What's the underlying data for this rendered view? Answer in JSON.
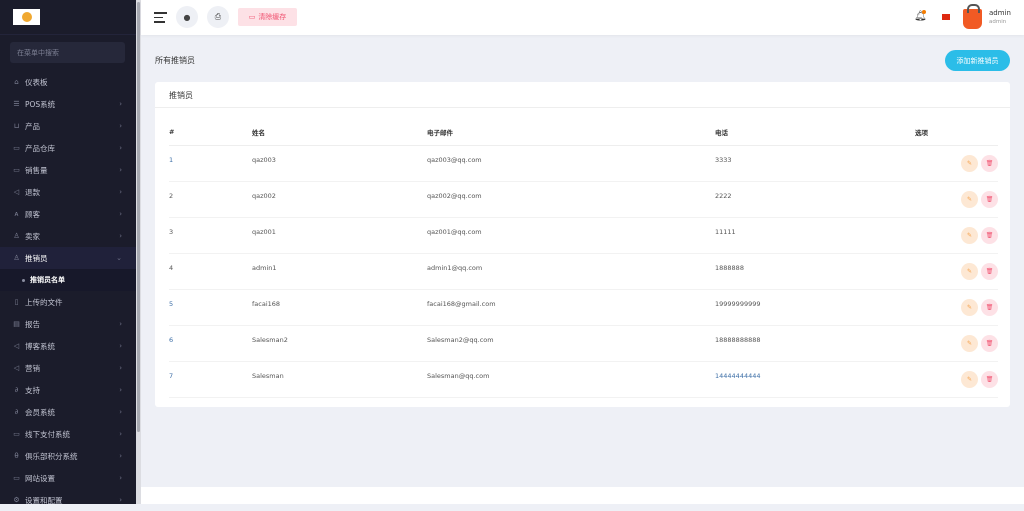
{
  "sidebar": {
    "search_placeholder": "在菜单中搜索",
    "items": [
      {
        "label": "仪表板",
        "icon": "home-icon",
        "chevron": false
      },
      {
        "label": "POS系统",
        "icon": "list-icon",
        "chevron": true
      },
      {
        "label": "产品",
        "icon": "cart-icon",
        "chevron": true
      },
      {
        "label": "产品仓库",
        "icon": "warehouse-icon",
        "chevron": true
      },
      {
        "label": "销售量",
        "icon": "sales-icon",
        "chevron": true
      },
      {
        "label": "退款",
        "icon": "refund-icon",
        "chevron": true
      },
      {
        "label": "顾客",
        "icon": "customers-icon",
        "chevron": true
      },
      {
        "label": "卖家",
        "icon": "user-icon",
        "chevron": true
      },
      {
        "label": "推销员",
        "icon": "user-icon",
        "chevron": true,
        "active": true
      },
      {
        "label": "上传的文件",
        "icon": "file-icon",
        "chevron": false
      },
      {
        "label": "报告",
        "icon": "report-icon",
        "chevron": true
      },
      {
        "label": "博客系统",
        "icon": "megaphone-icon",
        "chevron": true
      },
      {
        "label": "营销",
        "icon": "megaphone-icon",
        "chevron": true
      },
      {
        "label": "支持",
        "icon": "link-icon",
        "chevron": true
      },
      {
        "label": "会员系统",
        "icon": "link-icon",
        "chevron": true
      },
      {
        "label": "线下支付系统",
        "icon": "card-icon",
        "chevron": true
      },
      {
        "label": "俱乐部积分系统",
        "icon": "coin-icon",
        "chevron": true
      },
      {
        "label": "网站设置",
        "icon": "monitor-icon",
        "chevron": true
      },
      {
        "label": "设置和配置",
        "icon": "gear-icon",
        "chevron": true
      }
    ],
    "subitem": "推销员名单"
  },
  "topbar": {
    "clear_cache": "清除缓存",
    "user_name": "admin",
    "user_role": "admin"
  },
  "page": {
    "title": "所有推销员",
    "add_button": "添加新推销员"
  },
  "card": {
    "title": "推销员",
    "columns": [
      "#",
      "姓名",
      "电子邮件",
      "电话",
      "选项"
    ],
    "rows": [
      {
        "no": "1",
        "name": "qaz003",
        "email": "qaz003@qq.com",
        "phone": "3333"
      },
      {
        "no": "2",
        "name": "qaz002",
        "email": "qaz002@qq.com",
        "phone": "2222"
      },
      {
        "no": "3",
        "name": "qaz001",
        "email": "qaz001@qq.com",
        "phone": "11111"
      },
      {
        "no": "4",
        "name": "admin1",
        "email": "admin1@qq.com",
        "phone": "1888888"
      },
      {
        "no": "5",
        "name": "facai168",
        "email": "facai168@gmail.com",
        "phone": "19999999999"
      },
      {
        "no": "6",
        "name": "Salesman2",
        "email": "Salesman2@qq.com",
        "phone": "18888888888"
      },
      {
        "no": "7",
        "name": "Salesman",
        "email": "Salesman@qq.com",
        "phone": "14444444444"
      }
    ]
  },
  "colors": {
    "sidebar": "#1b1c2b",
    "accent": "#2bbde8",
    "edit": "#f5a04a",
    "delete": "#f0506e"
  }
}
